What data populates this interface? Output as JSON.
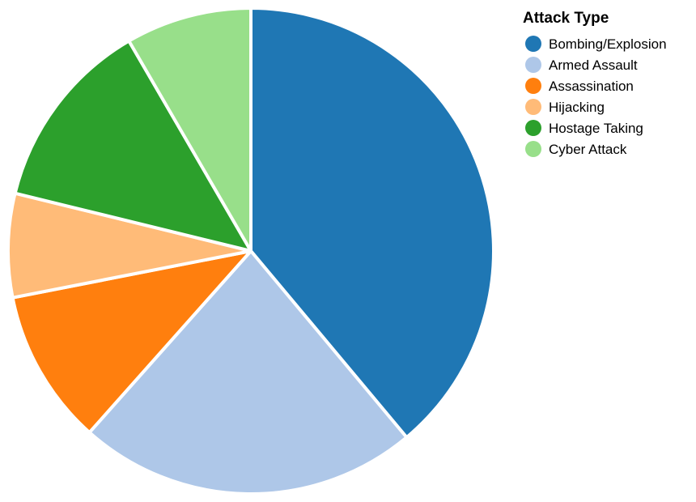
{
  "chart_data": {
    "type": "pie",
    "categories": [
      "Bombing/Explosion",
      "Armed Assault",
      "Assassination",
      "Hijacking",
      "Hostage Taking",
      "Cyber Attack"
    ],
    "values": [
      39.5,
      23,
      10.5,
      7,
      13,
      8.5
    ],
    "colors": [
      "#1f77b4",
      "#aec7e8",
      "#ff7f0e",
      "#ffbb78",
      "#2ca02c",
      "#98df8a"
    ],
    "start_angle_deg": 0,
    "direction": "clockwise",
    "legend": {
      "title": "Attack Type",
      "placement": "top-right"
    }
  }
}
